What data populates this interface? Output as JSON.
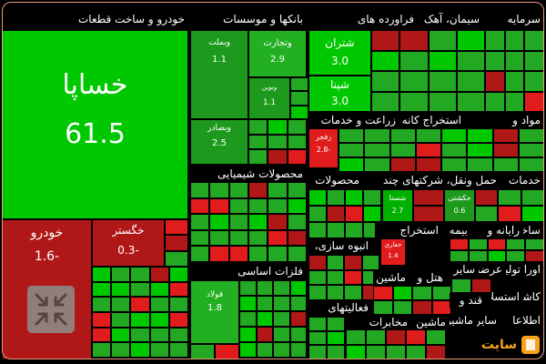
{
  "chart_data": {
    "type": "treemap",
    "colors": {
      "strong_up": "#00c800",
      "up": "#22a822",
      "down": "#b01818",
      "strong_down": "#e01c1c",
      "border": "#000000"
    },
    "sectors": [
      {
        "name": "خودرو و ساخت قطعات"
      },
      {
        "name": "بانکها و موسسات"
      },
      {
        "name": "فراورده های"
      },
      {
        "name": "سیمان، آهک و"
      },
      {
        "name": "سرمایه"
      },
      {
        "name": "استخراج کانه"
      },
      {
        "name": "زراعت و خدمات"
      },
      {
        "name": "مواد و"
      },
      {
        "name": "محصولات شیمیایی"
      },
      {
        "name": "حمل ونقل، شرکتهای چند"
      },
      {
        "name": "محصولات"
      },
      {
        "name": "خدمات"
      },
      {
        "name": "انبوه سازی،"
      },
      {
        "name": "بیمه"
      },
      {
        "name": "استخراج"
      },
      {
        "name": "ساخت"
      },
      {
        "name": "رایانه و"
      },
      {
        "name": "فلزات اساسی"
      },
      {
        "name": "هتل و"
      },
      {
        "name": "ماشین"
      },
      {
        "name": "عرضه"
      },
      {
        "name": "سایر"
      },
      {
        "name": "اوراق"
      },
      {
        "name": "تولیدا"
      },
      {
        "name": "فعالیتهای"
      },
      {
        "name": "قند و"
      },
      {
        "name": "کاشی"
      },
      {
        "name": "استسلاه"
      },
      {
        "name": "ماشین"
      },
      {
        "name": "مخابرات"
      },
      {
        "name": "سایر"
      },
      {
        "name": "اطلاعا"
      },
      {
        "name": "ماشین"
      }
    ],
    "stocks": [
      {
        "name": "خساپا",
        "value": "61.5",
        "change": 61.5
      },
      {
        "name": "خودرو",
        "value": "1.6-",
        "change": -1.6
      },
      {
        "name": "خگستر",
        "value": "0.3-",
        "change": -0.3
      },
      {
        "name": "وبملت",
        "value": "1.1",
        "change": 1.1
      },
      {
        "name": "وتجارت",
        "value": "2.9",
        "change": 2.9
      },
      {
        "name": "شتران",
        "value": "3.0",
        "change": 3.0
      },
      {
        "name": "شپنا",
        "value": "3.0",
        "change": 3.0
      },
      {
        "name": "ونوین",
        "value": "1.1",
        "change": 1.1
      },
      {
        "name": "وبصادر",
        "value": "2.5",
        "change": 2.5
      },
      {
        "name": "زفجر",
        "value": "2.8-",
        "change": -2.8
      },
      {
        "name": "شستا",
        "value": "2.7",
        "change": 2.7
      },
      {
        "name": "حکشتی",
        "value": "0.6",
        "change": 0.6
      },
      {
        "name": "حفاری",
        "value": "1.4",
        "change": 1.4
      },
      {
        "name": "فولاد",
        "value": "1.8",
        "change": 1.8
      }
    ]
  },
  "watermark": {
    "text": "سایت"
  }
}
